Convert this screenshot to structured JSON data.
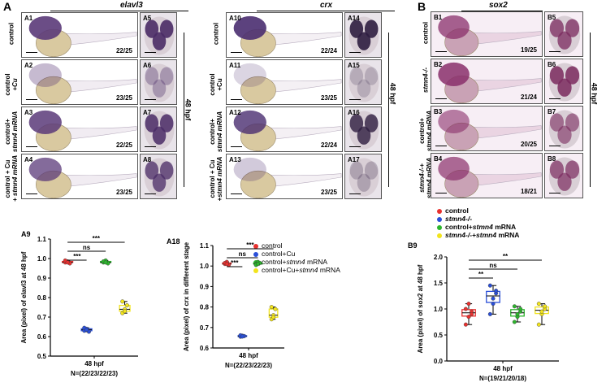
{
  "panel_a": {
    "letter": "A",
    "gene_left": "elavl3",
    "gene_right": "crx",
    "rows": [
      {
        "label": [
          "control"
        ]
      },
      {
        "label": [
          "control",
          "+Cu"
        ]
      },
      {
        "label": [
          "control+",
          "stmn4 mRNA"
        ]
      },
      {
        "label": [
          "control + Cu",
          "+ stmn4 mRNA"
        ]
      }
    ],
    "rows_right": [
      {
        "label": [
          "control"
        ]
      },
      {
        "label": [
          "control",
          "+Cu"
        ]
      },
      {
        "label": [
          "control+",
          "stmn4 mRNA"
        ]
      },
      {
        "label": [
          "control + Cu",
          "+stmn4 mRNA"
        ]
      }
    ],
    "left_ids": [
      "A1",
      "A2",
      "A3",
      "A4"
    ],
    "left_side_ids": [
      "A5",
      "A6",
      "A7",
      "A8"
    ],
    "left_ratios": [
      "22/25",
      "23/25",
      "22/25",
      "23/25"
    ],
    "right_ids": [
      "A10",
      "A11",
      "A12",
      "A13"
    ],
    "right_side_ids": [
      "A14",
      "A15",
      "A16",
      "A17"
    ],
    "right_ratios": [
      "22/24",
      "23/25",
      "22/24",
      "23/25"
    ],
    "stage": "48 hpf"
  },
  "panel_b": {
    "letter": "B",
    "gene": "sox2",
    "rows": [
      {
        "label": [
          "control"
        ]
      },
      {
        "label": [
          "stmn4-/-"
        ]
      },
      {
        "label": [
          "control+",
          "stmn4 mRNA"
        ]
      },
      {
        "label": [
          "stmn4-/-+",
          "stmn4 mRNA"
        ]
      }
    ],
    "ids": [
      "B1",
      "B2",
      "B3",
      "B4"
    ],
    "side_ids": [
      "B5",
      "B6",
      "B7",
      "B8"
    ],
    "ratios": [
      "19/25",
      "21/24",
      "20/25",
      "18/21"
    ],
    "stage": "48 hpf"
  },
  "legend_a": {
    "items": [
      {
        "label": "control",
        "color": "#e8312f"
      },
      {
        "label": "control+Cu",
        "color": "#2a4fd8"
      },
      {
        "label": "control+stmn4 mRNA",
        "color": "#2db52d"
      },
      {
        "label": "control+Cu+stmn4 mRNA",
        "color": "#f2e41c"
      }
    ]
  },
  "legend_b": {
    "items": [
      {
        "label": "control",
        "color": "#e8312f"
      },
      {
        "label": "stmn4-/-",
        "color": "#2a4fd8"
      },
      {
        "label": "control+stmn4 mRNA",
        "color": "#2db52d"
      },
      {
        "label": "stmn4-/-+stmn4 mRNA",
        "color": "#f2e41c"
      }
    ]
  },
  "chart_data": [
    {
      "id": "A9",
      "type": "box",
      "ylabel": "Area (pixel) of elavl3 at 48 hpf",
      "xlabel": "48 hpf",
      "note": "N=(22/23/22/23)",
      "ylim": [
        0.5,
        1.1
      ],
      "yticks": [
        0.5,
        0.6,
        0.7,
        0.8,
        0.9,
        1.0,
        1.1
      ],
      "series": [
        {
          "name": "control",
          "values": [
            0.98,
            0.985,
            0.975,
            0.99,
            0.98
          ]
        },
        {
          "name": "control+Cu",
          "values": [
            0.63,
            0.64,
            0.625,
            0.645,
            0.635
          ]
        },
        {
          "name": "control+stmn4 mRNA",
          "values": [
            0.98,
            0.99,
            0.975,
            0.985,
            0.98
          ]
        },
        {
          "name": "control+Cu+stmn4 mRNA",
          "values": [
            0.72,
            0.74,
            0.76,
            0.78,
            0.73
          ]
        }
      ],
      "significance": [
        {
          "pair": [
            0,
            1
          ],
          "label": "***"
        },
        {
          "pair": [
            0,
            2
          ],
          "label": "ns"
        },
        {
          "pair": [
            0,
            3
          ],
          "label": "***"
        }
      ]
    },
    {
      "id": "A18",
      "type": "box",
      "ylabel": "Area (pixel) of crx in different stage",
      "xlabel": "48 hpf",
      "note": "N=(22/23/22/23)",
      "ylim": [
        0.6,
        1.1
      ],
      "yticks": [
        0.6,
        0.7,
        0.8,
        0.9,
        1.0,
        1.1
      ],
      "series": [
        {
          "name": "control",
          "values": [
            1.01,
            1.02,
            1.005,
            1.015,
            1.01
          ]
        },
        {
          "name": "control+Cu",
          "values": [
            0.655,
            0.66,
            0.658,
            0.662,
            0.656
          ]
        },
        {
          "name": "control+stmn4 mRNA",
          "values": [
            1.01,
            1.02,
            1.015,
            1.005,
            1.01
          ]
        },
        {
          "name": "control+Cu+stmn4 mRNA",
          "values": [
            0.74,
            0.76,
            0.79,
            0.8,
            0.75
          ]
        }
      ],
      "significance": [
        {
          "pair": [
            0,
            1
          ],
          "label": "***"
        },
        {
          "pair": [
            0,
            2
          ],
          "label": "ns"
        },
        {
          "pair": [
            0,
            3
          ],
          "label": "***"
        }
      ]
    },
    {
      "id": "B9",
      "type": "box",
      "ylabel": "Area (pixel) of sox2 at 48 hpf",
      "xlabel": "48 hpf",
      "note": "N=(19/21/20/18)",
      "ylim": [
        0.0,
        2.0
      ],
      "yticks": [
        0.0,
        0.5,
        1.0,
        1.5,
        2.0
      ],
      "series": [
        {
          "name": "control",
          "values": [
            0.7,
            0.85,
            0.95,
            1.0,
            1.1,
            0.9
          ]
        },
        {
          "name": "stmn4-/-",
          "values": [
            0.9,
            1.1,
            1.3,
            1.45,
            1.2,
            1.35
          ]
        },
        {
          "name": "control+stmn4 mRNA",
          "values": [
            0.75,
            0.85,
            0.95,
            1.05,
            0.9,
            1.0
          ]
        },
        {
          "name": "stmn4-/-+stmn4 mRNA",
          "values": [
            0.7,
            0.9,
            1.0,
            1.1,
            0.95,
            1.05
          ]
        }
      ],
      "significance": [
        {
          "pair": [
            0,
            1
          ],
          "label": "**"
        },
        {
          "pair": [
            0,
            2
          ],
          "label": "ns"
        },
        {
          "pair": [
            0,
            3
          ],
          "label": "**"
        }
      ]
    }
  ]
}
